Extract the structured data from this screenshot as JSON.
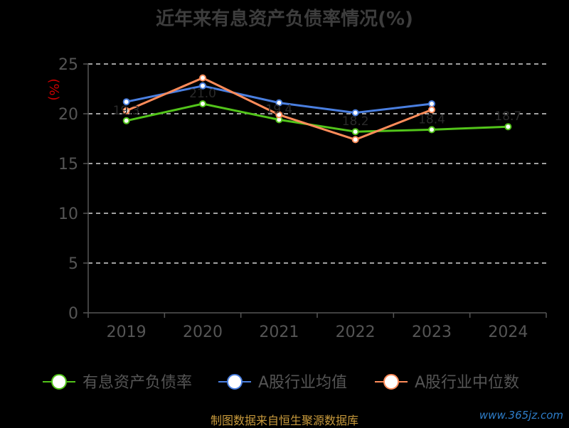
{
  "title": "近年来有息资产负债率情况(%)",
  "footer": "制图数据来自恒生聚源数据库",
  "watermark": "www.365jz.com",
  "colors": {
    "background": "#000000",
    "grid": "#ffffff",
    "axis": "#555555",
    "unit_label": "#cc0000"
  },
  "chart_data": {
    "type": "line",
    "title": "近年来有息资产负债率情况(%)",
    "ylabel": "(%)",
    "xlabel": "",
    "categories": [
      "2019",
      "2020",
      "2021",
      "2022",
      "2023",
      "2024"
    ],
    "ylim": [
      0,
      25
    ],
    "yticks": [
      0,
      5,
      10,
      15,
      20,
      25
    ],
    "grid": true,
    "legend_position": "bottom",
    "series": [
      {
        "name": "有息资产负债率",
        "color": "#52c41a",
        "values": [
          19.3,
          21.0,
          19.4,
          18.2,
          18.4,
          18.7
        ],
        "data_labels": [
          "19.3",
          "21.0",
          "19.4",
          "18.2",
          "18.4",
          "18.7"
        ]
      },
      {
        "name": "A股行业均值",
        "color": "#4a7fe0",
        "values": [
          21.2,
          22.8,
          21.1,
          20.1,
          21.0,
          null
        ]
      },
      {
        "name": "A股行业中位数",
        "color": "#ff8c5a",
        "values": [
          20.3,
          23.6,
          19.9,
          17.4,
          20.4,
          null
        ]
      }
    ]
  }
}
